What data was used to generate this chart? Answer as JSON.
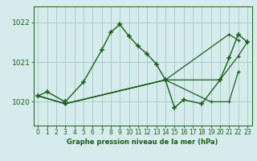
{
  "background_color": "#d6ecec",
  "grid_color": "#a8cccc",
  "line_color": "#1a5c1a",
  "title": "Graphe pression niveau de la mer (hPa)",
  "xlim": [
    -0.5,
    23.5
  ],
  "ylim": [
    1019.4,
    1022.4
  ],
  "yticks": [
    1020,
    1021,
    1022
  ],
  "xticks": [
    0,
    1,
    2,
    3,
    4,
    5,
    6,
    7,
    8,
    9,
    10,
    11,
    12,
    13,
    14,
    15,
    16,
    17,
    18,
    19,
    20,
    21,
    22,
    23
  ],
  "series": [
    {
      "x": [
        0,
        1,
        3,
        5,
        7,
        8,
        9,
        10,
        11,
        12,
        13,
        14,
        15,
        16,
        18,
        20,
        21,
        22,
        23
      ],
      "y": [
        1020.15,
        1020.25,
        1020.0,
        1020.5,
        1021.3,
        1021.75,
        1021.95,
        1021.65,
        1021.4,
        1021.2,
        1020.95,
        1020.55,
        1019.85,
        1020.05,
        1019.95,
        1020.55,
        1021.1,
        1021.7,
        1021.5
      ]
    },
    {
      "x": [
        0,
        3,
        14,
        21,
        22
      ],
      "y": [
        1020.15,
        1019.95,
        1020.55,
        1021.7,
        1021.55
      ]
    },
    {
      "x": [
        0,
        3,
        14,
        20,
        22,
        23
      ],
      "y": [
        1020.15,
        1019.95,
        1020.55,
        1020.55,
        1021.15,
        1021.5
      ]
    },
    {
      "x": [
        0,
        3,
        14,
        19,
        21,
        22
      ],
      "y": [
        1020.15,
        1019.95,
        1020.55,
        1020.0,
        1020.0,
        1020.75
      ]
    }
  ]
}
